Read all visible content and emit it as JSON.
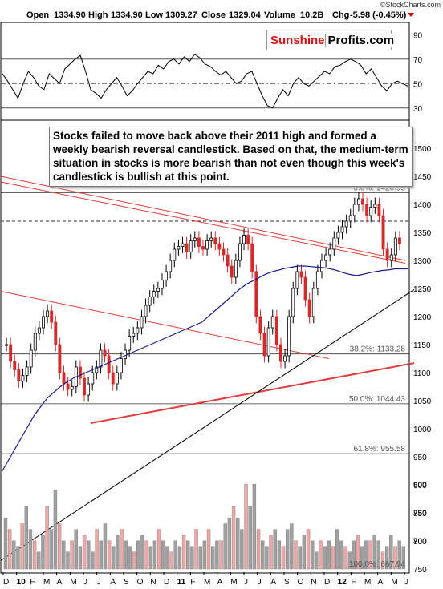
{
  "watermark": "©StockCharts.com",
  "header": {
    "open_label": "Open",
    "open": "1334.90",
    "high_label": "High",
    "high": "1334.90",
    "low_label": "Low",
    "low": "1309.27",
    "close_label": "Close",
    "close": "1329.04",
    "volume_label": "Volume",
    "volume": "10.2B",
    "chg_label": "Chg",
    "chg": "-5.98 (-0.45%)"
  },
  "logo": {
    "part1": "Sunshine",
    "part2": "Profits.com"
  },
  "annotation": "Stocks failed to move back above their 2011 high and formed a weekly bearish reversal candlestick. Based on that, the medium-term situation in stocks is more bearish than not even though this week's candlestick is bullish at this point.",
  "colors": {
    "up": "#ffffff",
    "down": "#d42a2a",
    "ma": "#1a1a8c",
    "trend_red": "#e23b3b",
    "fib": "#000000",
    "volume_up": "#a0a0a0",
    "volume_down": "#f0a6a6"
  },
  "chart_data": [
    {
      "type": "line",
      "panel": "RSI",
      "ylim": [
        20,
        100
      ],
      "yticks": [
        "90",
        "70",
        "50",
        "30"
      ],
      "reference_lines": [
        70,
        50,
        30
      ],
      "values": [
        58,
        52,
        45,
        38,
        50,
        60,
        55,
        48,
        45,
        58,
        54,
        50,
        62,
        66,
        70,
        73,
        60,
        45,
        42,
        38,
        45,
        50,
        55,
        48,
        40,
        44,
        50,
        55,
        60,
        58,
        65,
        62,
        68,
        70,
        66,
        72,
        68,
        74,
        71,
        66,
        64,
        60,
        57,
        60,
        55,
        50,
        52,
        58,
        60,
        50,
        40,
        32,
        30,
        38,
        45,
        40,
        50,
        55,
        50,
        48,
        52,
        56,
        60,
        58,
        64,
        65,
        68,
        70,
        68,
        65,
        58,
        62,
        55,
        48,
        44,
        50,
        52,
        50,
        48
      ]
    },
    {
      "type": "line",
      "panel": "price-ohlc",
      "ylim": [
        750,
        1550
      ],
      "yticks": [
        "1500",
        "1450",
        "1400",
        "1350",
        "1300",
        "1250",
        "1200",
        "1150",
        "1100",
        "1050",
        "1000",
        "950",
        "900",
        "850",
        "800",
        "750"
      ],
      "series": [
        {
          "name": "close",
          "values": [
            1150,
            1120,
            1105,
            1085,
            1095,
            1110,
            1140,
            1170,
            1180,
            1200,
            1210,
            1190,
            1150,
            1100,
            1080,
            1070,
            1075,
            1110,
            1090,
            1060,
            1080,
            1100,
            1110,
            1140,
            1130,
            1100,
            1080,
            1100,
            1125,
            1140,
            1165,
            1170,
            1180,
            1200,
            1220,
            1235,
            1245,
            1250,
            1265,
            1280,
            1300,
            1320,
            1325,
            1330,
            1315,
            1335,
            1340,
            1325,
            1320,
            1335,
            1340,
            1330,
            1320,
            1310,
            1290,
            1270,
            1300,
            1330,
            1345,
            1330,
            1280,
            1200,
            1170,
            1130,
            1180,
            1200,
            1150,
            1120,
            1130,
            1200,
            1250,
            1280,
            1270,
            1230,
            1200,
            1250,
            1280,
            1300,
            1310,
            1320,
            1340,
            1350,
            1360,
            1370,
            1380,
            1400,
            1410,
            1400,
            1380,
            1395,
            1400,
            1380,
            1320,
            1300,
            1310,
            1340,
            1330
          ]
        },
        {
          "name": "moving average",
          "values": [
            925,
            945,
            965,
            985,
            1005,
            1025,
            1040,
            1055,
            1065,
            1075,
            1083,
            1090,
            1095,
            1100,
            1105,
            1110,
            1115,
            1120,
            1125,
            1130,
            1135,
            1140,
            1145,
            1150,
            1155,
            1160,
            1165,
            1170,
            1175,
            1180,
            1185,
            1190,
            1200,
            1210,
            1220,
            1230,
            1240,
            1250,
            1258,
            1264,
            1270,
            1276,
            1280,
            1283,
            1286,
            1288,
            1290,
            1290,
            1289,
            1288,
            1287,
            1285,
            1282,
            1278,
            1275,
            1273,
            1275,
            1278,
            1280,
            1282,
            1283,
            1285,
            1285,
            1285
          ]
        }
      ],
      "annotations": [
        "0.0%: 1420.95",
        "38.2%: 1133.28",
        "50.0%: 1044.43",
        "61.8%: 955.58"
      ],
      "fib_levels": [
        1420.95,
        1133.28,
        1044.43,
        955.58
      ]
    },
    {
      "type": "bar",
      "panel": "volume",
      "yticks": [
        "800",
        "750",
        "700"
      ],
      "annotations": [
        "100.0%: 667.94"
      ],
      "values": [
        740,
        720,
        700,
        690,
        730,
        760,
        720,
        700,
        680,
        710,
        760,
        720,
        790,
        730,
        700,
        680,
        700,
        720,
        690,
        710,
        700,
        680,
        720,
        700,
        730,
        700,
        690,
        710,
        720,
        700,
        690,
        680,
        700,
        710,
        700,
        690,
        700,
        720,
        700,
        690,
        680,
        700,
        690,
        710,
        700,
        690,
        720,
        690,
        700,
        720,
        690,
        700,
        700,
        730,
        740,
        760,
        740,
        720,
        800,
        760,
        800,
        720,
        700,
        690,
        710,
        720,
        700,
        690,
        720,
        730,
        700,
        690,
        710,
        720,
        700,
        680,
        700,
        690,
        700,
        690,
        720,
        700,
        690,
        680,
        700,
        710,
        690,
        700,
        700,
        710,
        700,
        680,
        690,
        710,
        690,
        700,
        690
      ]
    }
  ],
  "x_axis": [
    "D",
    "10",
    "F",
    "M",
    "A",
    "M",
    "J",
    "J",
    "A",
    "S",
    "O",
    "N",
    "D",
    "11",
    "F",
    "M",
    "A",
    "M",
    "J",
    "J",
    "A",
    "S",
    "O",
    "N",
    "D",
    "12",
    "F",
    "M",
    "A",
    "M",
    "J"
  ]
}
